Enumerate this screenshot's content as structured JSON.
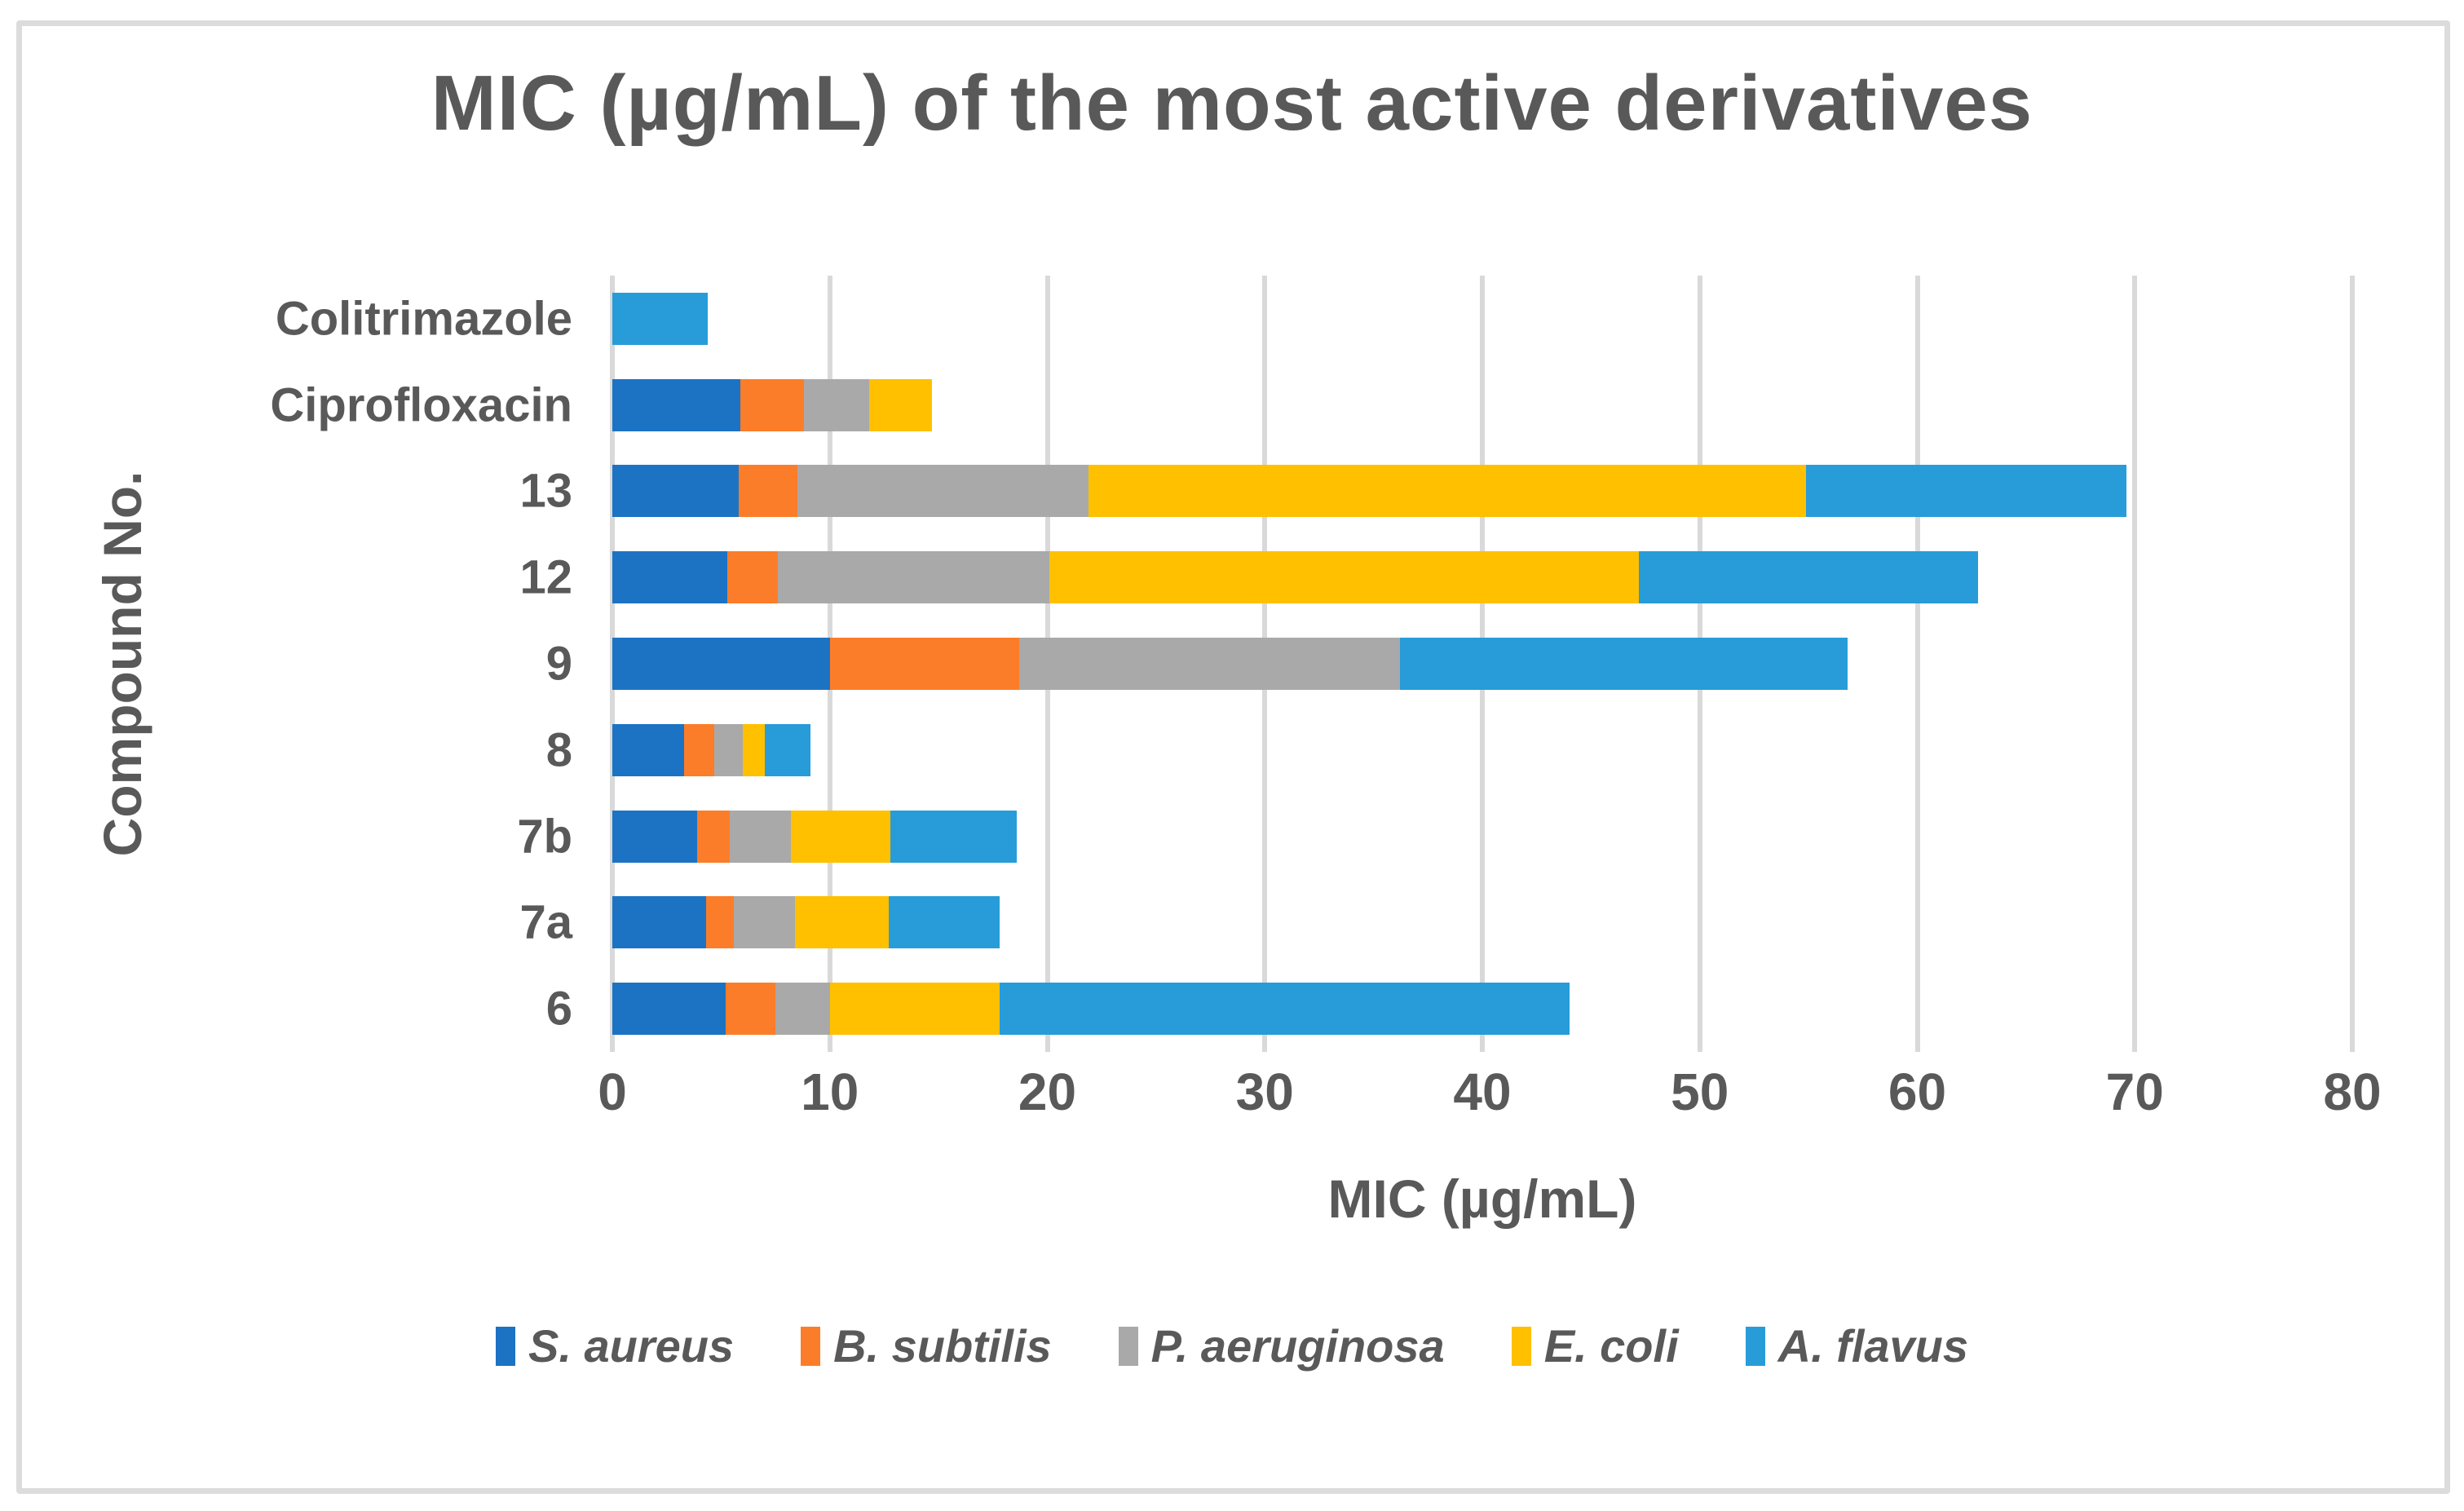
{
  "title": "MIC (µg/mL) of the most active derivatives",
  "chart_data": {
    "type": "bar",
    "orientation": "horizontal-stacked",
    "title": "MIC (µg/mL) of the most active derivatives",
    "xlabel": "MIC (µg/mL)",
    "ylabel": "Compound No.",
    "xlim": [
      0,
      80
    ],
    "x_ticks": [
      0,
      10,
      20,
      30,
      40,
      50,
      60,
      70,
      80
    ],
    "grid": true,
    "legend_position": "bottom",
    "categories": [
      "Colitrimazole",
      "Ciprofloxacin",
      "13",
      "12",
      "9",
      "8",
      "7b",
      "7a",
      "6"
    ],
    "series": [
      {
        "name": "S. aureus",
        "color": "#1c73c4",
        "values": [
          0,
          5.9,
          5.8,
          5.3,
          10.0,
          3.3,
          3.9,
          4.3,
          5.2
        ]
      },
      {
        "name": "B. subtilis",
        "color": "#fc7d29",
        "values": [
          0,
          2.9,
          2.7,
          2.3,
          8.7,
          1.4,
          1.5,
          1.3,
          2.3
        ]
      },
      {
        "name": "P. aeruginosa",
        "color": "#a9a9a9",
        "values": [
          0,
          3.0,
          13.4,
          12.5,
          17.5,
          1.3,
          2.8,
          2.8,
          2.5
        ]
      },
      {
        "name": "E. coli",
        "color": "#ffc000",
        "values": [
          0,
          2.9,
          33.0,
          27.1,
          0,
          1.0,
          4.6,
          4.3,
          7.8
        ]
      },
      {
        "name": "A. flavus",
        "color": "#279cd9",
        "values": [
          4.4,
          0,
          14.7,
          15.6,
          20.6,
          2.1,
          5.8,
          5.1,
          26.2
        ]
      }
    ]
  },
  "colors": {
    "text": "#595959",
    "gridline": "#d9d9d9",
    "frame_border": "#dcdcdc",
    "background": "#ffffff"
  }
}
